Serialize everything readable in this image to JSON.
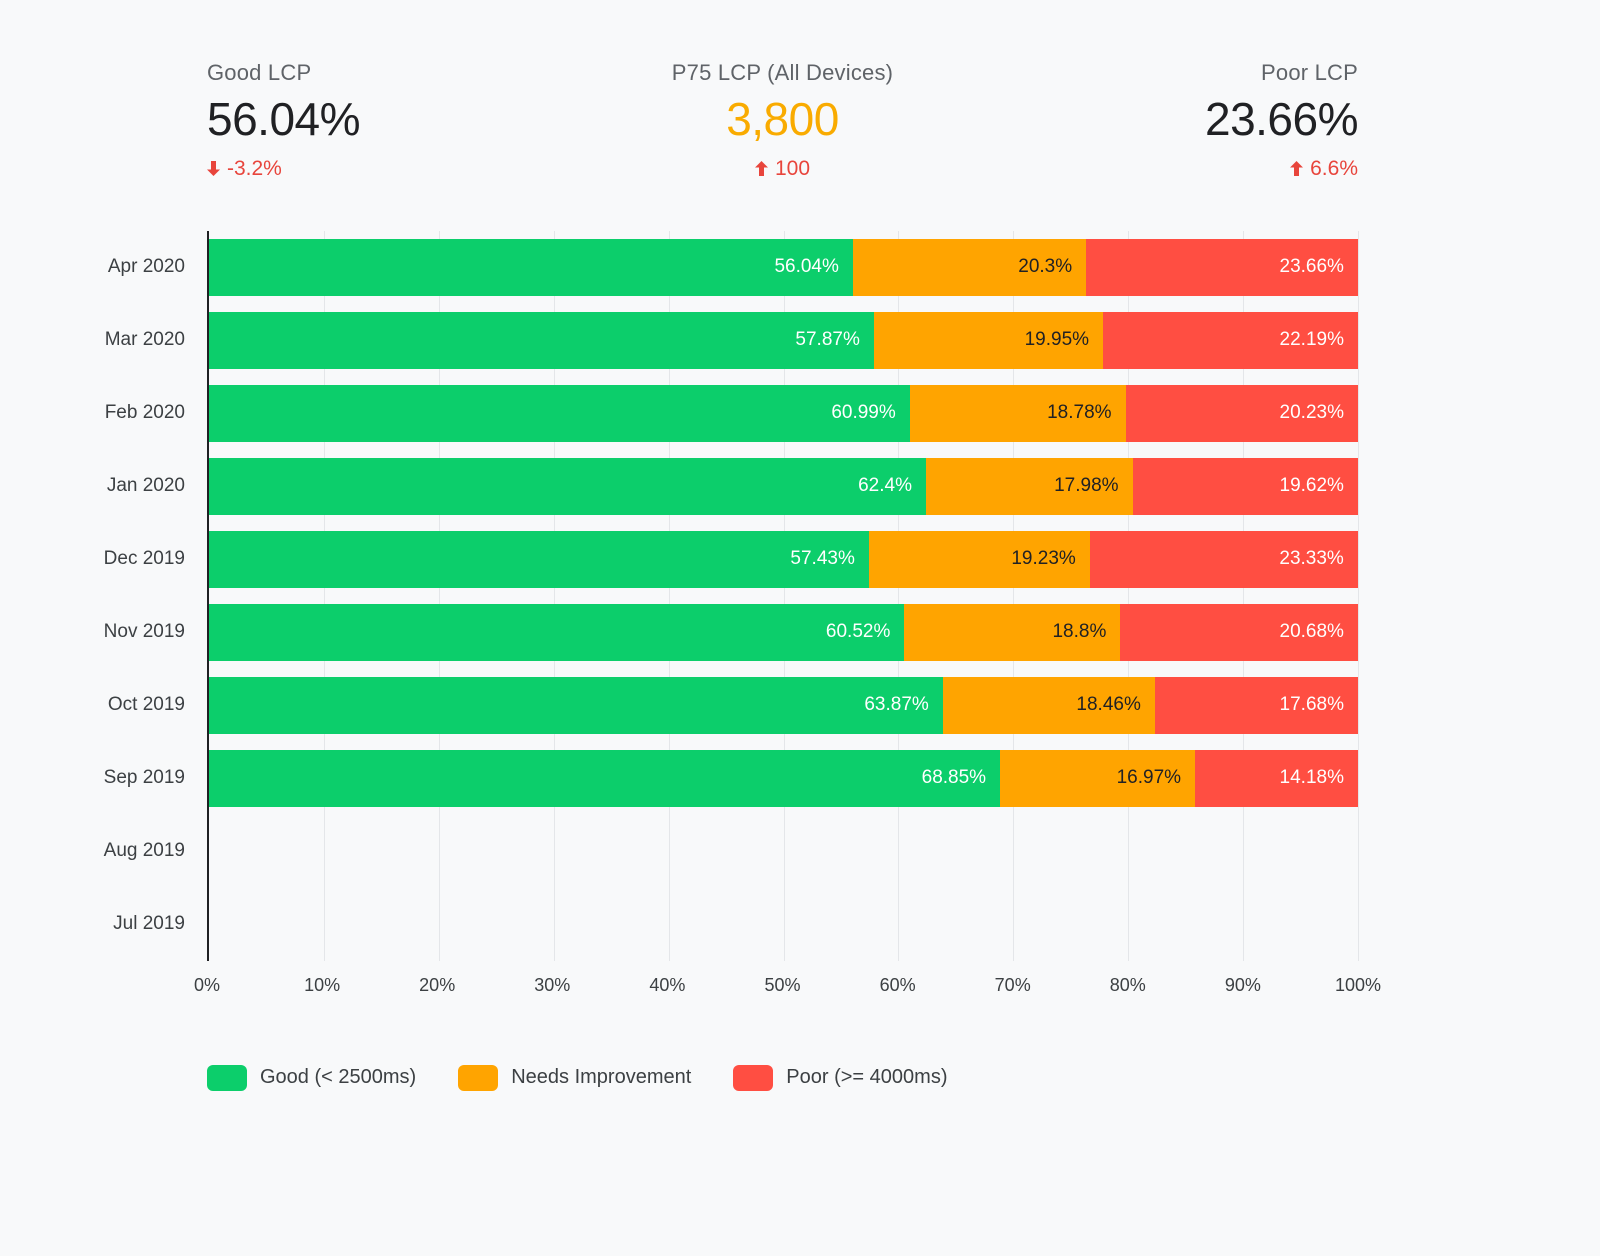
{
  "kpis": [
    {
      "label": "Good LCP",
      "value": "56.04%",
      "delta": "-3.2%",
      "direction": "down",
      "value_color": "#202124"
    },
    {
      "label": "P75 LCP (All Devices)",
      "value": "3,800",
      "delta": "100",
      "direction": "up",
      "value_color": "#f9ab00"
    },
    {
      "label": "Poor LCP",
      "value": "23.66%",
      "delta": "6.6%",
      "direction": "up",
      "value_color": "#202124"
    }
  ],
  "chart_data": {
    "type": "bar",
    "orientation": "horizontal",
    "stacked": true,
    "categories": [
      "Apr 2020",
      "Mar 2020",
      "Feb 2020",
      "Jan 2020",
      "Dec 2019",
      "Nov 2019",
      "Oct 2019",
      "Sep 2019",
      "Aug 2019",
      "Jul 2019"
    ],
    "series": [
      {
        "name": "Good (< 2500ms)",
        "color": "#0cce6b",
        "label_color": "#ffffff",
        "values": [
          56.04,
          57.87,
          60.99,
          62.4,
          57.43,
          60.52,
          63.87,
          68.85,
          null,
          null
        ]
      },
      {
        "name": "Needs Improvement",
        "color": "#ffa400",
        "label_color": "#202124",
        "values": [
          20.3,
          19.95,
          18.78,
          17.98,
          19.23,
          18.8,
          18.46,
          16.97,
          null,
          null
        ]
      },
      {
        "name": "Poor (>= 4000ms)",
        "color": "#ff4e42",
        "label_color": "#ffffff",
        "values": [
          23.66,
          22.19,
          20.23,
          19.62,
          23.33,
          20.68,
          17.68,
          14.18,
          null,
          null
        ]
      }
    ],
    "x_ticks": [
      "0%",
      "10%",
      "20%",
      "30%",
      "40%",
      "50%",
      "60%",
      "70%",
      "80%",
      "90%",
      "100%"
    ],
    "xlim": [
      0,
      100
    ],
    "grid": true,
    "legend_position": "bottom",
    "value_label_suffix": "%"
  }
}
